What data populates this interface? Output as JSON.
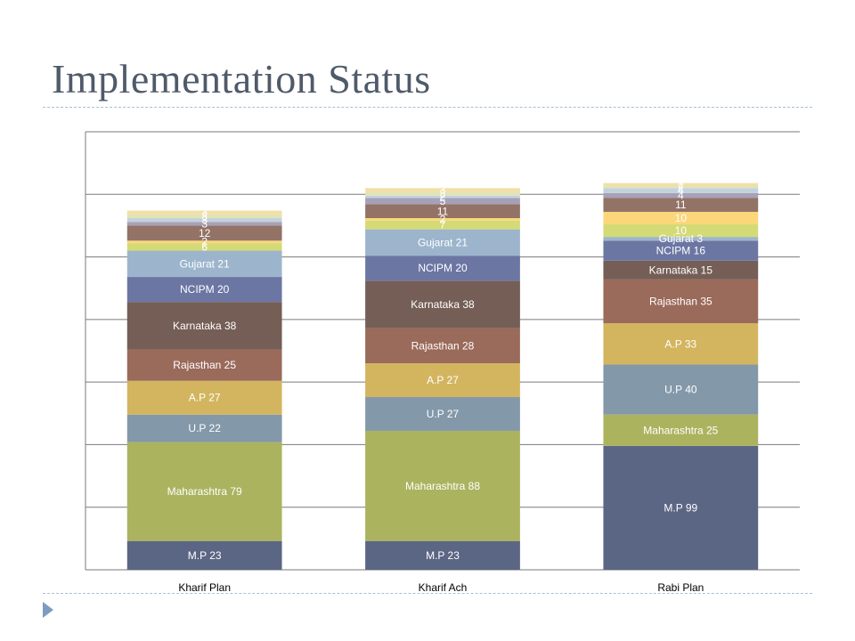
{
  "slide": {
    "title": "Implementation Status"
  },
  "chart_data": {
    "type": "bar",
    "stacked": true,
    "grid": true,
    "legend": "none",
    "ylim": [
      0,
      350
    ],
    "categories": [
      "Kharif Plan",
      "Kharif Ach",
      "Rabi Plan"
    ],
    "series": [
      {
        "values": [
          23,
          23,
          99
        ],
        "color": "#5b6584"
      },
      {
        "values": [
          79,
          88,
          25
        ],
        "color": "#abb35f"
      },
      {
        "values": [
          22,
          27,
          40
        ],
        "color": "#8398a9"
      },
      {
        "values": [
          27,
          27,
          33
        ],
        "color": "#d3b55f"
      },
      {
        "values": [
          25,
          28,
          35
        ],
        "color": "#9a6a5a"
      },
      {
        "values": [
          38,
          38,
          15
        ],
        "color": "#745e56"
      },
      {
        "values": [
          20,
          20,
          16
        ],
        "color": "#6c76a3"
      },
      {
        "values": [
          21,
          21,
          3
        ],
        "color": "#9db5cc"
      },
      {
        "values": [
          6,
          7,
          10
        ],
        "color": "#d4da76"
      },
      {
        "values": [
          2,
          2,
          10
        ],
        "color": "#fbd77a"
      },
      {
        "values": [
          12,
          11,
          11
        ],
        "color": "#937366"
      },
      {
        "values": [
          3,
          5,
          4
        ],
        "color": "#a8a0b6"
      },
      {
        "values": [
          3,
          2,
          4
        ],
        "color": "#c2d2dd"
      },
      {
        "values": [
          3,
          3,
          2
        ],
        "color": "#e2e3b6"
      },
      {
        "values": [
          3,
          3,
          2
        ],
        "color": "#f2dfa6"
      }
    ],
    "segment_labels": [
      [
        "M.P 23",
        "M.P 23",
        "M.P 99"
      ],
      [
        "Maharashtra 79",
        "Maharashtra 88",
        "Maharashtra 25"
      ],
      [
        "U.P 22",
        "U.P 27",
        "U.P 40"
      ],
      [
        "A.P 27",
        "A.P 27",
        "A.P 33"
      ],
      [
        "Rajasthan 25",
        "Rajasthan 28",
        "Rajasthan 35"
      ],
      [
        "Karnataka 38",
        "Karnataka 38",
        "Karnataka 15"
      ],
      [
        "NCIPM 20",
        "NCIPM 20",
        "NCIPM 16"
      ],
      [
        "Gujarat 21",
        "Gujarat 21",
        "Gujarat 3"
      ],
      [
        "6",
        "7",
        "10"
      ],
      [
        "2",
        "2",
        "10"
      ],
      [
        "12",
        "11",
        "11"
      ],
      [
        "3",
        "5",
        "4"
      ],
      [
        "3",
        "2",
        "4"
      ],
      [
        "3",
        "3",
        "2"
      ],
      [
        "3",
        "3",
        "2"
      ]
    ]
  }
}
